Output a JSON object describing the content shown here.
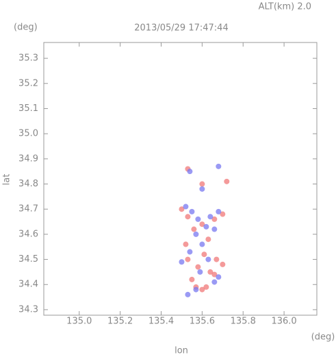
{
  "chart_data": {
    "type": "scatter",
    "title": "2013/05/29 17:47:44",
    "subtitle": "ALT(km) 2.0",
    "y_unit": "(deg)",
    "x_unit": "(deg)",
    "xlabel": "lon",
    "ylabel": "lat",
    "xlim": [
      134.827,
      136.16
    ],
    "ylim": [
      34.278,
      35.363
    ],
    "xticks": [
      {
        "value": 135,
        "label": "135.0"
      },
      135.2,
      135.4,
      135.6,
      135.8,
      {
        "value": 136,
        "label": "136.0"
      }
    ],
    "yticks": [
      34.3,
      34.4,
      34.5,
      34.6,
      34.7,
      34.8,
      34.9,
      {
        "value": 35,
        "label": "35.0"
      },
      35.1,
      35.2,
      35.3
    ],
    "series": [
      {
        "color": "#f07878",
        "x": [
          135.53,
          135.6,
          135.72,
          135.5,
          135.53,
          135.6,
          135.66,
          135.7,
          135.56,
          135.63,
          135.52,
          135.61,
          135.67,
          135.7,
          135.53,
          135.58,
          135.66,
          135.57,
          135.6,
          135.62,
          135.64,
          135.55
        ],
        "values": [
          34.86,
          34.8,
          34.81,
          34.7,
          34.67,
          34.64,
          34.66,
          34.68,
          34.62,
          34.58,
          34.56,
          34.52,
          34.5,
          34.48,
          34.5,
          34.47,
          34.44,
          34.39,
          34.38,
          34.39,
          34.45,
          34.42
        ]
      },
      {
        "color": "#7878f0",
        "x": [
          135.68,
          135.54,
          135.6,
          135.52,
          135.55,
          135.58,
          135.64,
          135.68,
          135.62,
          135.57,
          135.66,
          135.6,
          135.54,
          135.63,
          135.68,
          135.66,
          135.57,
          135.53,
          135.5,
          135.59
        ],
        "values": [
          34.87,
          34.85,
          34.78,
          34.71,
          34.69,
          34.66,
          34.67,
          34.69,
          34.63,
          34.6,
          34.62,
          34.56,
          34.53,
          34.5,
          34.43,
          34.41,
          34.38,
          34.36,
          34.49,
          34.45
        ]
      }
    ]
  }
}
